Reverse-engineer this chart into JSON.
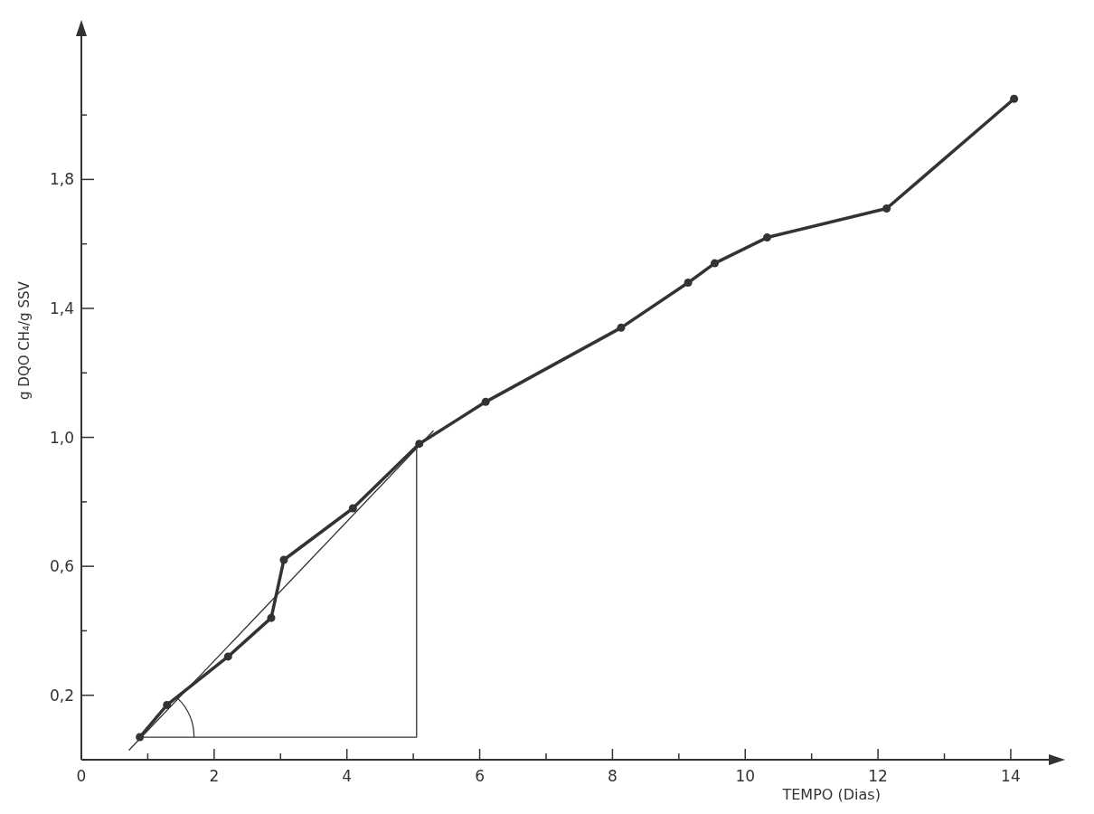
{
  "chart_data": {
    "type": "line",
    "xlabel": "TEMPO (Dias)",
    "ylabel": "g DQO  CH₄/g SSV",
    "xlim": [
      0,
      14.6
    ],
    "ylim": [
      0,
      2.25
    ],
    "xticks": [
      {
        "value": 0,
        "label": "0"
      },
      {
        "value": 1,
        "label": null
      },
      2,
      {
        "value": 3,
        "label": null
      },
      4,
      {
        "value": 5,
        "label": null
      },
      6,
      {
        "value": 7,
        "label": null
      },
      8,
      {
        "value": 9,
        "label": null
      },
      10,
      {
        "value": 11,
        "label": null
      },
      12,
      {
        "value": 13,
        "label": null
      },
      14
    ],
    "yticks": [
      {
        "value": 0.2,
        "label": "0,2"
      },
      {
        "value": 0.4,
        "label": null
      },
      {
        "value": 0.6,
        "label": "0,6"
      },
      {
        "value": 0.8,
        "label": null
      },
      {
        "value": 1.0,
        "label": "1,0"
      },
      {
        "value": 1.2,
        "label": null
      },
      {
        "value": 1.4,
        "label": "1,4"
      },
      {
        "value": 1.6,
        "label": null
      },
      {
        "value": 1.8,
        "label": "1,8"
      },
      {
        "value": 2.0,
        "label": null
      }
    ],
    "grid": false,
    "series": [
      {
        "color": "#333333",
        "marker": "circle",
        "x": [
          0.88,
          1.29,
          2.21,
          2.86,
          3.05,
          4.09,
          5.09,
          6.09,
          8.13,
          9.14,
          9.54,
          10.33,
          12.13,
          14.05
        ],
        "values": [
          0.07,
          0.17,
          0.32,
          0.44,
          0.62,
          0.78,
          0.98,
          1.11,
          1.34,
          1.48,
          1.54,
          1.62,
          1.71,
          2.05
        ]
      },
      {
        "type": "line",
        "color": "#333333",
        "marker": "none",
        "x": [
          0.72,
          5.3
        ],
        "values": [
          0.03,
          1.02
        ]
      },
      {
        "type": "line",
        "color": "#333333",
        "marker": "none",
        "x": [
          0.88,
          5.05,
          5.05
        ],
        "values": [
          0.07,
          0.07,
          0.98
        ]
      }
    ]
  }
}
